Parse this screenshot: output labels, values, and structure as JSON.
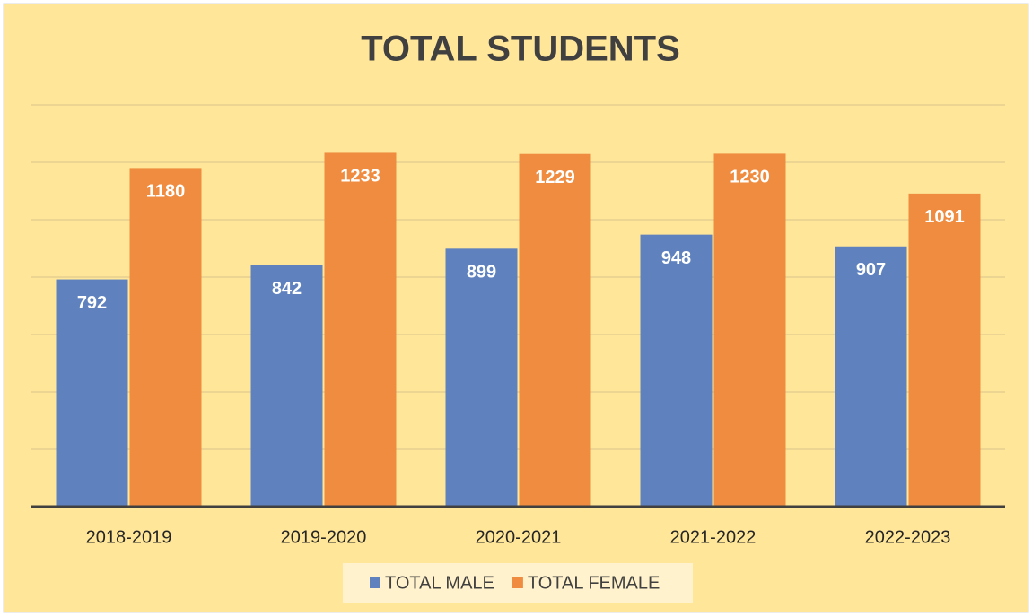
{
  "chart_data": {
    "type": "bar",
    "title": "TOTAL STUDENTS",
    "categories": [
      "2018-2019",
      "2019-2020",
      "2020-2021",
      "2021-2022",
      "2022-2023"
    ],
    "series": [
      {
        "name": "TOTAL MALE",
        "color": "#5f82bf",
        "values": [
          792,
          842,
          899,
          948,
          907
        ]
      },
      {
        "name": "TOTAL FEMALE",
        "color": "#ef8c3f",
        "values": [
          1180,
          1233,
          1229,
          1230,
          1091
        ]
      }
    ],
    "ylim": [
      0,
      1400
    ],
    "yticks": [
      0,
      200,
      400,
      600,
      800,
      1000,
      1200,
      1400
    ],
    "grid": true,
    "legend": "bottom"
  }
}
